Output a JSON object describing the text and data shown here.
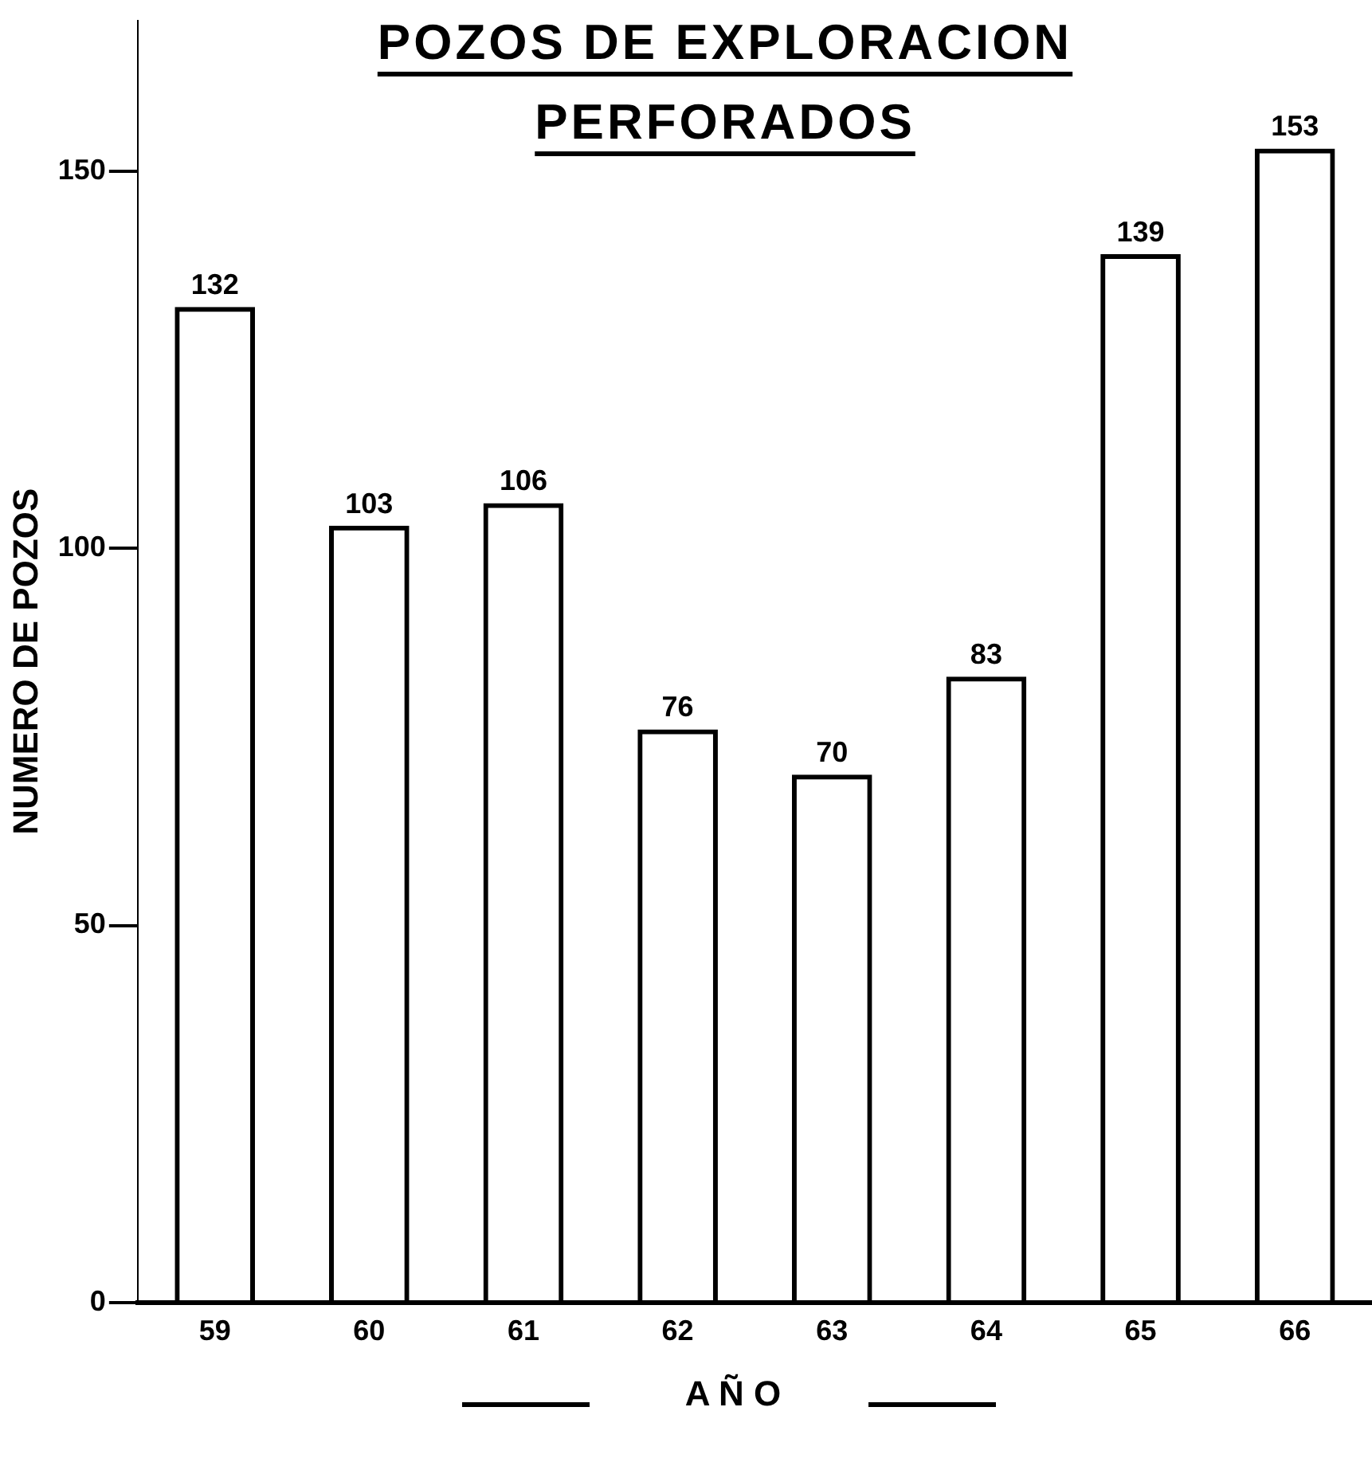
{
  "chart_data": {
    "type": "bar",
    "title": "POZOS DE EXPLORACION PERFORADOS",
    "xlabel": "A Ñ O",
    "ylabel": "NUMERO DE POZOS",
    "categories": [
      "59",
      "60",
      "61",
      "62",
      "63",
      "64",
      "65",
      "66"
    ],
    "values": [
      132,
      103,
      106,
      76,
      70,
      83,
      139,
      153
    ],
    "color": "#000000",
    "ylim": [
      0,
      170
    ],
    "yticks": [
      0,
      50,
      100,
      150
    ],
    "grid": false,
    "data_labels": true
  }
}
